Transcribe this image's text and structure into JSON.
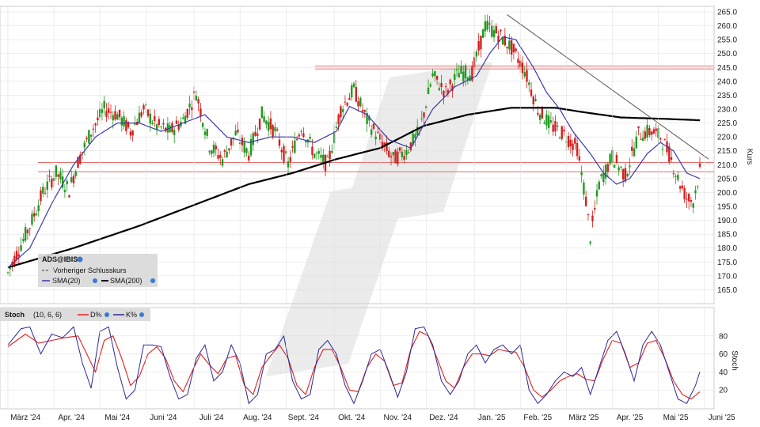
{
  "colors": {
    "up": "#1f9a1f",
    "down": "#d42020",
    "sma20": "#3a3aa8",
    "sma200": "#000000",
    "resistance": "#e07070",
    "trendline": "#555555",
    "stoch_d": "#e02020",
    "stoch_k": "#2a2a9a",
    "grid": "#dddddd"
  },
  "chart_data": [
    {
      "type": "candlestick",
      "title": "ADS@IBIS",
      "ylabel": "Kurs",
      "ylim": [
        160,
        267
      ],
      "yticks": [
        "165.0",
        "170.0",
        "175.0",
        "180.0",
        "185.0",
        "190.0",
        "195.0",
        "200.0",
        "205.0",
        "210.0",
        "215.0",
        "220.0",
        "225.0",
        "230.0",
        "235.0",
        "240.0",
        "245.0",
        "250.0",
        "255.0",
        "260.0",
        "265.0"
      ],
      "x_months": [
        "März '24",
        "Apr. '24",
        "Mai '24",
        "Juni '24",
        "Juli '24",
        "Aug. '24",
        "Sept. '24",
        "Okt. '24",
        "Nov. '24",
        "Dez. '24",
        "Jan. '25",
        "Feb. '25",
        "März '25",
        "Apr. '25",
        "Mai '25",
        "Juni '25"
      ],
      "legend": {
        "symbol": "ADS@IBIS",
        "previous_close": "Vorheriger Schlusskurs",
        "sma20": "SMA(20)",
        "sma200": "SMA(200)"
      },
      "close_anchors": [
        [
          0,
          171
        ],
        [
          4,
          178
        ],
        [
          10,
          188
        ],
        [
          16,
          200
        ],
        [
          22,
          207
        ],
        [
          28,
          201
        ],
        [
          32,
          211
        ],
        [
          38,
          222
        ],
        [
          44,
          230
        ],
        [
          50,
          228
        ],
        [
          56,
          222
        ],
        [
          62,
          230
        ],
        [
          68,
          224
        ],
        [
          74,
          222
        ],
        [
          80,
          226
        ],
        [
          86,
          236
        ],
        [
          92,
          217
        ],
        [
          98,
          212
        ],
        [
          104,
          221
        ],
        [
          110,
          214
        ],
        [
          116,
          228
        ],
        [
          122,
          222
        ],
        [
          128,
          210
        ],
        [
          134,
          224
        ],
        [
          140,
          214
        ],
        [
          146,
          210
        ],
        [
          152,
          230
        ],
        [
          158,
          237
        ],
        [
          164,
          226
        ],
        [
          170,
          219
        ],
        [
          176,
          212
        ],
        [
          182,
          215
        ],
        [
          188,
          222
        ],
        [
          194,
          242
        ],
        [
          200,
          236
        ],
        [
          206,
          243
        ],
        [
          212,
          243
        ],
        [
          218,
          260
        ],
        [
          224,
          257
        ],
        [
          230,
          252
        ],
        [
          236,
          244
        ],
        [
          242,
          230
        ],
        [
          248,
          224
        ],
        [
          254,
          221
        ],
        [
          260,
          216
        ],
        [
          264,
          197
        ],
        [
          266,
          184
        ],
        [
          270,
          203
        ],
        [
          276,
          213
        ],
        [
          282,
          206
        ],
        [
          288,
          221
        ],
        [
          294,
          222
        ],
        [
          298,
          220
        ],
        [
          302,
          214
        ],
        [
          306,
          205
        ],
        [
          310,
          198
        ],
        [
          313,
          197
        ],
        [
          316,
          208
        ]
      ],
      "sma20_anchors": [
        [
          0,
          173
        ],
        [
          10,
          180
        ],
        [
          20,
          196
        ],
        [
          30,
          210
        ],
        [
          40,
          220
        ],
        [
          50,
          225
        ],
        [
          60,
          225
        ],
        [
          70,
          222
        ],
        [
          80,
          225
        ],
        [
          90,
          228
        ],
        [
          100,
          220
        ],
        [
          110,
          218
        ],
        [
          120,
          220
        ],
        [
          130,
          220
        ],
        [
          140,
          218
        ],
        [
          150,
          222
        ],
        [
          156,
          231
        ],
        [
          164,
          228
        ],
        [
          174,
          219
        ],
        [
          184,
          216
        ],
        [
          194,
          230
        ],
        [
          204,
          238
        ],
        [
          214,
          242
        ],
        [
          220,
          250
        ],
        [
          226,
          256
        ],
        [
          232,
          255
        ],
        [
          240,
          245
        ],
        [
          246,
          236
        ],
        [
          252,
          230
        ],
        [
          258,
          222
        ],
        [
          266,
          214
        ],
        [
          272,
          207
        ],
        [
          278,
          203
        ],
        [
          284,
          205
        ],
        [
          292,
          214
        ],
        [
          298,
          218
        ],
        [
          304,
          215
        ],
        [
          310,
          207
        ],
        [
          316,
          205
        ]
      ],
      "sma200_anchors": [
        [
          0,
          173
        ],
        [
          30,
          180
        ],
        [
          60,
          188
        ],
        [
          90,
          197
        ],
        [
          110,
          203
        ],
        [
          130,
          207
        ],
        [
          150,
          212
        ],
        [
          170,
          216
        ],
        [
          190,
          224
        ],
        [
          210,
          228
        ],
        [
          230,
          230.5
        ],
        [
          250,
          230.5
        ],
        [
          262,
          229
        ],
        [
          280,
          227
        ],
        [
          300,
          226.5
        ],
        [
          316,
          226
        ]
      ],
      "resistance_levels": [
        207.5,
        210.8,
        244.5,
        245.5
      ],
      "trendline": {
        "from": [
          228,
          264
        ],
        "to": [
          320,
          212
        ]
      }
    },
    {
      "type": "line",
      "title": "Stoch",
      "params": "(10, 6, 6)",
      "legend": {
        "d": "D%",
        "k": "K%"
      },
      "ylabel": "Stoch",
      "ylim": [
        0,
        100
      ],
      "yticks": [
        "20",
        "40",
        "60",
        "80"
      ],
      "k_anchors": [
        [
          0,
          70
        ],
        [
          6,
          88
        ],
        [
          10,
          90
        ],
        [
          15,
          60
        ],
        [
          20,
          82
        ],
        [
          25,
          78
        ],
        [
          30,
          90
        ],
        [
          34,
          50
        ],
        [
          38,
          22
        ],
        [
          42,
          85
        ],
        [
          46,
          90
        ],
        [
          50,
          45
        ],
        [
          54,
          10
        ],
        [
          58,
          20
        ],
        [
          62,
          70
        ],
        [
          66,
          70
        ],
        [
          70,
          68
        ],
        [
          74,
          35
        ],
        [
          78,
          10
        ],
        [
          82,
          15
        ],
        [
          86,
          55
        ],
        [
          90,
          70
        ],
        [
          94,
          30
        ],
        [
          98,
          40
        ],
        [
          102,
          70
        ],
        [
          106,
          50
        ],
        [
          110,
          5
        ],
        [
          114,
          15
        ],
        [
          118,
          60
        ],
        [
          122,
          65
        ],
        [
          126,
          80
        ],
        [
          130,
          30
        ],
        [
          134,
          10
        ],
        [
          138,
          15
        ],
        [
          142,
          65
        ],
        [
          146,
          75
        ],
        [
          150,
          60
        ],
        [
          154,
          25
        ],
        [
          158,
          5
        ],
        [
          162,
          30
        ],
        [
          166,
          60
        ],
        [
          170,
          65
        ],
        [
          174,
          40
        ],
        [
          178,
          12
        ],
        [
          182,
          40
        ],
        [
          186,
          88
        ],
        [
          190,
          90
        ],
        [
          194,
          70
        ],
        [
          198,
          30
        ],
        [
          202,
          15
        ],
        [
          206,
          30
        ],
        [
          210,
          60
        ],
        [
          214,
          70
        ],
        [
          218,
          50
        ],
        [
          222,
          65
        ],
        [
          226,
          70
        ],
        [
          230,
          60
        ],
        [
          234,
          70
        ],
        [
          238,
          20
        ],
        [
          242,
          5
        ],
        [
          246,
          15
        ],
        [
          250,
          30
        ],
        [
          254,
          40
        ],
        [
          258,
          35
        ],
        [
          262,
          45
        ],
        [
          266,
          15
        ],
        [
          270,
          45
        ],
        [
          274,
          75
        ],
        [
          278,
          85
        ],
        [
          282,
          60
        ],
        [
          286,
          30
        ],
        [
          290,
          70
        ],
        [
          294,
          85
        ],
        [
          298,
          70
        ],
        [
          302,
          40
        ],
        [
          306,
          10
        ],
        [
          310,
          5
        ],
        [
          314,
          25
        ],
        [
          318,
          55
        ]
      ],
      "d_anchors": [
        [
          0,
          68
        ],
        [
          8,
          82
        ],
        [
          14,
          72
        ],
        [
          20,
          75
        ],
        [
          26,
          78
        ],
        [
          32,
          80
        ],
        [
          36,
          60
        ],
        [
          40,
          40
        ],
        [
          44,
          75
        ],
        [
          48,
          80
        ],
        [
          52,
          55
        ],
        [
          56,
          25
        ],
        [
          60,
          35
        ],
        [
          64,
          60
        ],
        [
          68,
          68
        ],
        [
          72,
          55
        ],
        [
          76,
          30
        ],
        [
          80,
          18
        ],
        [
          84,
          40
        ],
        [
          88,
          60
        ],
        [
          92,
          48
        ],
        [
          96,
          38
        ],
        [
          100,
          55
        ],
        [
          104,
          58
        ],
        [
          108,
          25
        ],
        [
          112,
          15
        ],
        [
          116,
          45
        ],
        [
          120,
          58
        ],
        [
          124,
          70
        ],
        [
          128,
          55
        ],
        [
          132,
          25
        ],
        [
          136,
          15
        ],
        [
          140,
          45
        ],
        [
          144,
          65
        ],
        [
          148,
          65
        ],
        [
          152,
          45
        ],
        [
          156,
          20
        ],
        [
          160,
          18
        ],
        [
          164,
          45
        ],
        [
          168,
          60
        ],
        [
          172,
          52
        ],
        [
          176,
          25
        ],
        [
          180,
          28
        ],
        [
          184,
          65
        ],
        [
          188,
          85
        ],
        [
          192,
          80
        ],
        [
          196,
          55
        ],
        [
          200,
          30
        ],
        [
          204,
          22
        ],
        [
          208,
          45
        ],
        [
          212,
          60
        ],
        [
          216,
          60
        ],
        [
          220,
          58
        ],
        [
          224,
          65
        ],
        [
          228,
          63
        ],
        [
          232,
          62
        ],
        [
          236,
          45
        ],
        [
          240,
          20
        ],
        [
          244,
          12
        ],
        [
          248,
          20
        ],
        [
          252,
          30
        ],
        [
          256,
          35
        ],
        [
          260,
          38
        ],
        [
          264,
          32
        ],
        [
          268,
          30
        ],
        [
          272,
          55
        ],
        [
          276,
          75
        ],
        [
          280,
          72
        ],
        [
          284,
          45
        ],
        [
          288,
          50
        ],
        [
          292,
          72
        ],
        [
          296,
          75
        ],
        [
          300,
          55
        ],
        [
          304,
          30
        ],
        [
          308,
          15
        ],
        [
          312,
          10
        ],
        [
          316,
          18
        ],
        [
          320,
          35
        ]
      ]
    }
  ]
}
